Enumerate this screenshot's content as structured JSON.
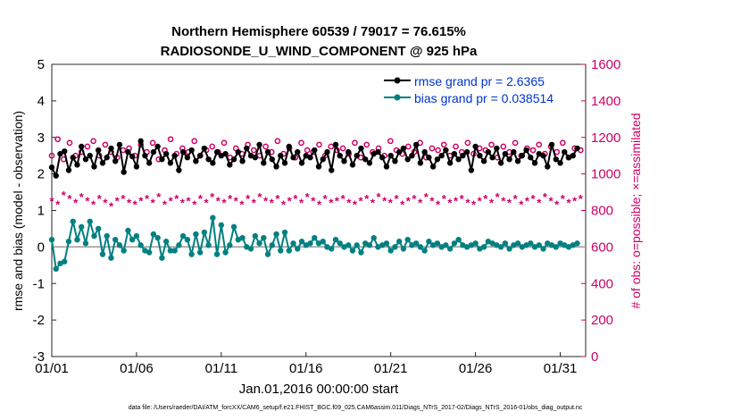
{
  "chart_data": {
    "type": "line",
    "title": "Northern Hemisphere 60539 / 79017 = 76.615%",
    "subtitle": "RADIOSONDE_U_WIND_COMPONENT @ 925 hPa",
    "xlabel": "Jan.01,2016 00:00:00 start",
    "ylabel": "rmse and bias (model - observation)",
    "ylabel_right": "# of obs: o=possible; ×=assimilated",
    "footnote": "data file: /Users/raeder/DAI/ATM_forcXX/CAM6_setup/f.e21.FHIST_BGC.f09_025.CAM6assim.011/Diags_NTrS_2017-02/Diags_NTrS_2016-01/obs_diag_output.nc",
    "xlim": [
      0,
      31.5
    ],
    "ylim": [
      -3,
      5
    ],
    "ylim_right": [
      0,
      1600
    ],
    "x_ticks": [
      0,
      5,
      10,
      15,
      20,
      25,
      30
    ],
    "x_tick_labels": [
      "01/01",
      "01/06",
      "01/11",
      "01/16",
      "01/21",
      "01/26",
      "01/31"
    ],
    "y_ticks": [
      -3,
      -2,
      -1,
      0,
      1,
      2,
      3,
      4,
      5
    ],
    "y_tick_labels": [
      "-3",
      "-2",
      "-1",
      "0",
      "1",
      "2",
      "3",
      "4",
      "5"
    ],
    "y_ticks_right": [
      0,
      200,
      400,
      600,
      800,
      1000,
      1200,
      1400,
      1600
    ],
    "y_tick_labels_right": [
      "0",
      "200",
      "400",
      "600",
      "800",
      "1000",
      "1200",
      "1400",
      "1600"
    ],
    "legend_position": "top-right",
    "x_step_days": 0.25,
    "series": [
      {
        "name": "rmse",
        "legend_label": "rmse grand pr = 2.6365",
        "color": "#000000",
        "marker": "filled-circle",
        "axis": "left",
        "values": [
          2.18,
          1.95,
          2.55,
          2.62,
          2.1,
          2.45,
          2.25,
          2.75,
          2.4,
          2.5,
          2.2,
          2.65,
          2.3,
          2.45,
          2.7,
          2.35,
          2.8,
          2.05,
          2.6,
          2.48,
          2.2,
          2.9,
          2.5,
          2.3,
          2.6,
          2.75,
          2.4,
          2.55,
          2.3,
          2.5,
          2.1,
          2.6,
          2.45,
          2.65,
          2.35,
          2.5,
          2.7,
          2.4,
          2.3,
          2.6,
          2.5,
          2.55,
          2.25,
          2.4,
          2.6,
          2.35,
          2.7,
          2.5,
          2.45,
          2.8,
          2.3,
          2.6,
          2.4,
          2.2,
          2.5,
          2.3,
          2.75,
          2.45,
          2.6,
          2.3,
          2.5,
          2.45,
          2.65,
          2.2,
          2.4,
          2.6,
          2.1,
          2.8,
          2.5,
          2.35,
          2.6,
          2.25,
          2.5,
          2.7,
          2.4,
          2.3,
          2.55,
          2.6,
          2.45,
          2.2,
          2.5,
          2.35,
          2.6,
          2.7,
          2.4,
          2.5,
          2.8,
          2.3,
          2.6,
          2.45,
          2.2,
          2.4,
          2.5,
          2.65,
          2.3,
          2.55,
          2.4,
          2.5,
          2.6,
          2.1,
          2.75,
          2.5,
          2.35,
          2.6,
          2.45,
          2.7,
          2.3,
          2.55,
          2.4,
          2.6,
          2.35,
          2.5,
          2.65,
          2.45,
          2.3,
          2.55,
          2.5,
          2.2,
          2.8,
          2.4,
          2.3,
          2.6,
          2.45,
          2.5,
          2.7,
          2.35,
          2.55,
          2.4,
          2.65,
          2.5,
          2.3,
          2.5,
          2.45,
          2.6,
          2.35,
          2.7,
          2.5,
          2.2,
          2.4,
          2.6,
          2.3,
          2.8,
          2.5,
          2.45,
          2.55,
          2.3,
          2.6,
          2.4,
          2.5,
          2.7,
          2.35,
          2.6,
          2.45,
          2.2,
          2.55,
          2.5,
          2.6,
          2.35,
          2.5,
          2.75,
          2.45,
          2.6,
          2.3,
          2.5,
          2.55,
          2.4,
          2.6,
          2.5,
          2.45,
          2.3,
          2.6,
          2.5,
          2.4,
          2.65,
          2.5,
          2.35,
          2.55,
          2.45,
          2.6,
          2.5,
          2.3,
          2.55,
          2.4,
          2.6,
          2.5,
          2.3,
          2.6,
          2.45,
          2.5,
          2.7,
          2.4,
          2.35,
          2.55,
          2.5,
          2.6,
          2.45,
          2.5,
          2.3,
          2.6,
          2.4,
          2.55,
          2.5,
          2.35,
          2.6,
          2.45,
          2.5,
          2.4,
          2.55,
          2.6,
          2.4,
          2.5,
          2.35,
          2.6,
          2.5,
          2.45,
          2.6,
          2.4,
          2.5,
          2.3,
          2.6,
          2.5,
          2.45,
          2.55,
          2.4,
          2.6,
          2.5,
          2.35,
          2.55,
          2.45,
          2.6,
          2.5,
          2.4,
          2.6,
          2.45,
          2.5,
          2.3,
          2.55,
          2.5,
          2.6,
          2.45,
          2.5,
          2.4,
          2.55,
          2.6,
          2.5,
          2.45,
          2.6,
          2.5,
          2.4,
          2.5,
          2.6,
          2.45,
          2.55,
          2.5,
          2.4,
          2.6,
          2.45,
          2.5,
          2.35,
          2.55,
          2.5,
          2.6,
          2.45,
          2.5,
          2.4,
          2.55,
          2.5,
          2.6,
          2.45,
          2.5,
          2.4,
          2.55,
          2.6,
          2.5,
          2.45,
          2.5,
          2.6,
          2.4,
          2.55,
          2.5,
          2.45,
          2.6,
          2.5,
          2.4,
          2.5,
          2.55,
          2.45,
          2.5,
          2.6,
          2.4,
          2.5,
          2.55,
          2.45,
          2.6,
          2.5,
          2.4,
          2.55,
          2.5,
          2.45,
          2.6,
          2.5,
          2.5,
          2.45,
          2.55,
          2.4,
          2.6,
          2.5,
          2.45,
          2.55,
          2.5,
          2.4,
          2.6,
          2.5,
          2.45,
          2.55,
          2.5,
          2.4,
          2.6,
          2.5,
          2.45,
          2.55,
          2.5,
          2.4,
          2.6,
          2.5,
          2.45,
          2.55,
          2.5,
          2.4,
          2.6,
          2.5,
          2.45,
          2.55,
          2.5,
          2.4,
          2.6,
          2.5,
          2.45,
          2.55,
          2.5,
          2.4,
          2.6,
          2.5,
          2.45,
          2.55,
          2.5,
          2.4,
          2.6,
          2.5,
          2.45,
          2.55,
          2.5,
          2.4,
          2.6,
          2.5,
          2.45,
          2.55,
          2.5,
          2.4,
          2.6,
          2.5,
          2.45,
          2.55,
          2.5,
          2.4,
          2.6,
          2.5,
          2.45,
          2.55,
          2.5,
          2.4,
          2.6,
          2.5,
          2.45,
          2.55,
          2.5,
          2.4,
          2.6,
          2.5,
          2.45,
          2.55,
          2.5,
          2.4,
          2.6,
          2.5,
          2.45,
          2.55,
          2.5,
          2.4,
          2.6,
          2.5,
          2.45,
          2.55,
          2.5,
          2.4,
          2.6,
          2.5,
          2.45,
          2.55,
          2.5,
          2.4,
          2.6,
          2.5,
          2.45,
          2.55,
          2.5,
          2.4,
          2.6,
          2.5,
          2.45,
          2.55,
          2.5,
          2.4,
          2.6,
          2.5,
          2.45,
          2.55,
          2.5,
          2.4,
          2.6,
          2.5,
          2.45,
          2.55,
          2.5,
          2.4,
          2.6,
          2.5,
          2.45,
          2.55,
          2.5,
          2.4,
          2.6,
          2.5,
          2.45,
          2.55,
          2.5,
          2.4,
          2.6,
          2.5,
          2.45,
          2.55,
          2.5,
          2.4,
          2.6,
          2.5,
          2.45,
          2.55,
          2.5,
          2.4,
          2.6,
          2.5,
          2.45,
          2.55,
          2.5,
          2.4,
          2.6,
          2.5,
          2.45,
          2.55,
          2.5,
          2.4,
          2.6,
          2.5,
          2.45,
          2.55,
          2.5,
          2.4,
          2.6,
          2.5,
          2.45,
          2.55,
          2.5,
          2.4,
          2.6,
          2.5,
          2.45,
          2.55,
          2.5,
          2.4,
          2.6,
          2.5,
          2.45,
          2.55,
          2.5,
          2.4,
          2.6,
          2.5
        ]
      },
      {
        "name": "bias",
        "legend_label": "bias grand pr = 0.038514",
        "color": "#008080",
        "marker": "filled-circle",
        "axis": "left",
        "values": [
          0.2,
          -0.6,
          -0.45,
          -0.4,
          0.15,
          0.7,
          0.2,
          0.55,
          0.1,
          0.7,
          0.3,
          0.5,
          -0.2,
          0.3,
          -0.3,
          0.2,
          0.05,
          -0.1,
          0.45,
          0.2,
          0.3,
          0.05,
          -0.1,
          -0.15,
          0.35,
          0.25,
          -0.3,
          0.15,
          -0.1,
          -0.1,
          0.05,
          0.3,
          0.2,
          -0.2,
          0.35,
          -0.15,
          0.4,
          0.05,
          0.8,
          -0.2,
          0.6,
          -0.15,
          0.05,
          0.55,
          0.2,
          0.25,
          0.0,
          -0.05,
          0.3,
          0.1,
          0.25,
          -0.2,
          0.05,
          0.35,
          -0.1,
          0.4,
          -0.1,
          0.1,
          -0.05,
          0.15,
          0.05,
          0.1,
          0.25,
          0.1,
          0.15,
          0.0,
          -0.05,
          0.2,
          0.1,
          0.0,
          0.05,
          -0.1,
          0.05,
          -0.15,
          0.1,
          0.05,
          0.25,
          0.0,
          0.05,
          0.1,
          -0.1,
          0.0,
          0.15,
          -0.05,
          0.2,
          0.05,
          0.1,
          0.0,
          -0.1,
          0.15,
          0.05,
          0.1,
          0.0,
          0.05,
          -0.05,
          0.1,
          0.2,
          0.05,
          0.0,
          0.05,
          0.1,
          -0.05,
          0.0,
          0.15,
          0.1,
          0.05,
          0.0,
          0.1,
          -0.05,
          0.05,
          0.1,
          0.0,
          0.05,
          0.1,
          0.0,
          0.05,
          -0.05,
          0.1,
          0.05,
          0.0,
          0.1,
          0.05,
          0.0,
          0.05,
          0.1,
          0.0,
          0.05,
          0.0,
          0.1,
          0.05,
          0.0,
          0.05,
          0.1,
          0.0,
          0.05,
          0.0,
          0.05,
          0.1,
          0.0,
          0.05,
          0.0,
          0.1
        ]
      },
      {
        "name": "obs possible",
        "color": "#cc0066",
        "marker": "open-circle",
        "axis": "right",
        "values": [
          1100,
          1190,
          1080,
          1170,
          1100,
          1120,
          1150,
          1180,
          1100,
          1160,
          1120,
          1090,
          1130,
          1140,
          1100,
          1160,
          1120,
          1170,
          1080,
          1130,
          1190,
          1110,
          1140,
          1120,
          1180,
          1100,
          1130,
          1150,
          1120,
          1170,
          1090,
          1140,
          1110,
          1160,
          1130,
          1100,
          1150,
          1120,
          1180,
          1110,
          1140,
          1090,
          1170,
          1130,
          1120,
          1160,
          1100,
          1150,
          1130,
          1140,
          1110,
          1170,
          1090,
          1160,
          1120,
          1140,
          1100,
          1180,
          1130,
          1110,
          1150,
          1120,
          1170,
          1090,
          1140,
          1130,
          1160,
          1100,
          1150,
          1120,
          1170,
          1110,
          1140,
          1130,
          1160,
          1090,
          1150,
          1120,
          1170,
          1100,
          1140,
          1130,
          1160,
          1110,
          1150,
          1120,
          1170,
          1090,
          1140,
          1130
        ]
      },
      {
        "name": "obs assimilated",
        "color": "#cc0066",
        "marker": "asterisk",
        "axis": "right",
        "values": [
          850,
          830,
          880,
          860,
          840,
          870,
          850,
          830,
          860,
          840,
          820,
          850,
          860,
          840,
          830,
          850,
          860,
          840,
          870,
          830,
          850,
          860,
          840,
          850,
          830,
          860,
          840,
          870,
          850,
          840,
          860,
          850,
          830,
          860,
          840,
          870,
          850,
          840,
          860,
          830,
          850,
          860,
          840,
          870,
          850,
          830,
          860,
          840,
          850,
          860,
          840,
          830,
          850,
          860,
          840,
          870,
          850,
          840,
          860,
          830,
          850,
          860,
          840,
          870,
          850,
          830,
          860,
          840,
          850,
          860,
          840,
          830,
          850,
          860,
          840,
          870,
          850,
          840,
          860,
          830,
          850,
          860,
          840,
          870,
          850,
          830,
          860,
          840,
          850,
          860
        ]
      }
    ]
  }
}
